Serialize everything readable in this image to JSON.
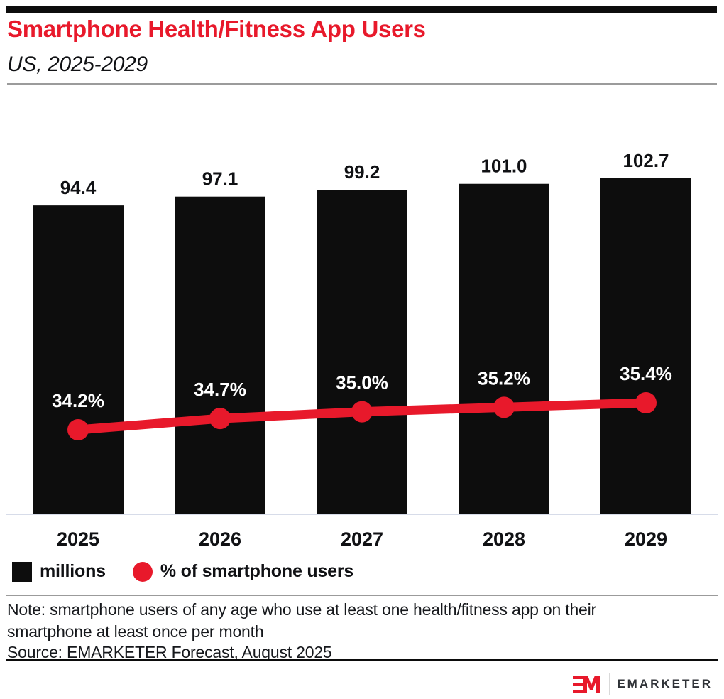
{
  "header": {
    "title": "Smartphone Health/Fitness App Users",
    "subtitle": "US, 2025-2029"
  },
  "theme": {
    "accent_red": "#e8192b",
    "bar_black": "#0d0d0d",
    "baseline_color": "#d7dce9",
    "value_label_color": "#101114",
    "pct_label_color": "#ffffff"
  },
  "chart_data": {
    "type": "combo",
    "title": "Smartphone Health/Fitness App Users",
    "subtitle": "US, 2025-2029",
    "categories": [
      "2025",
      "2026",
      "2027",
      "2028",
      "2029"
    ],
    "series": [
      {
        "name": "millions",
        "type": "bar",
        "color": "#0d0d0d",
        "values": [
          94.4,
          97.1,
          99.2,
          101.0,
          102.7
        ],
        "labels": [
          "94.4",
          "97.1",
          "99.2",
          "101.0",
          "102.7"
        ]
      },
      {
        "name": "% of smartphone users",
        "type": "line",
        "color": "#e8192b",
        "values": [
          34.2,
          34.7,
          35.0,
          35.2,
          35.4
        ],
        "labels": [
          "34.2%",
          "34.7%",
          "35.0%",
          "35.2%",
          "35.4%"
        ]
      }
    ],
    "bar_axis_range": [
      0,
      110
    ],
    "line_axis_range": [
      33,
      36
    ],
    "grid": false,
    "value_labels": true,
    "legend_position": "bottom-left"
  },
  "legend": {
    "items": [
      {
        "label": "millions",
        "swatch": "square",
        "color": "#0d0d0d"
      },
      {
        "label": "% of smartphone users",
        "swatch": "circle",
        "color": "#e8192b"
      }
    ]
  },
  "note": "Note: smartphone users of any age who use at least one health/fitness app on their\nsmartphone at least once per month",
  "source": "Source: EMARKETER Forecast, August 2025",
  "footer": {
    "brand": "EMARKETER",
    "logo": "em-monogram"
  }
}
